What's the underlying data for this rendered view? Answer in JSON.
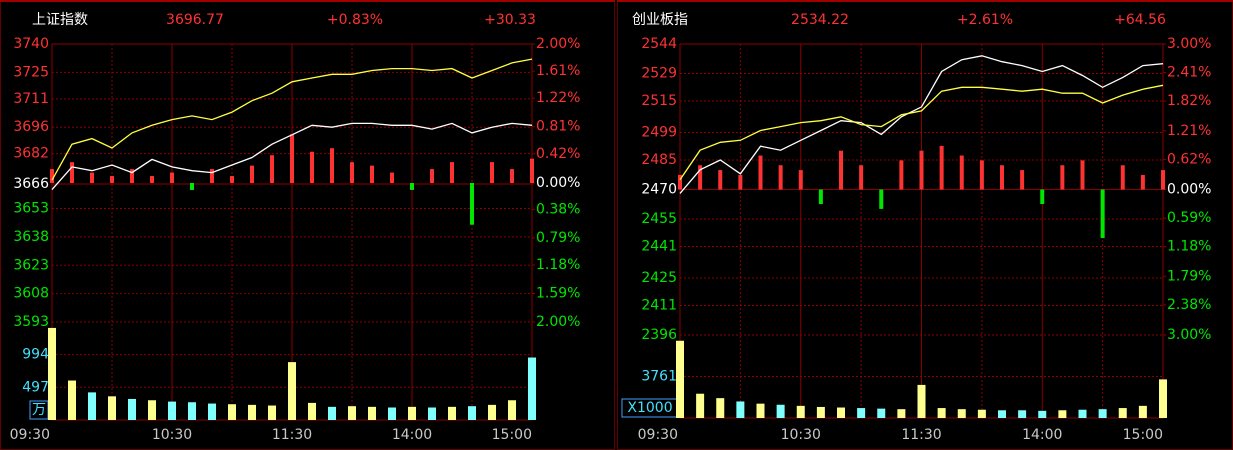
{
  "chart_data": [
    {
      "type": "intraday",
      "title": "上证指数",
      "price": "3696.77",
      "change_pct": "+0.83%",
      "change": "+30.33",
      "xlim": [
        0,
        240
      ],
      "xticks": [
        {
          "value": 0,
          "label": "09:30"
        },
        {
          "value": 60,
          "label": "10:30"
        },
        {
          "value": 120,
          "label": "11:30"
        },
        {
          "value": 180,
          "label": "14:00"
        },
        {
          "value": 240,
          "label": "15:00"
        }
      ],
      "ylim": [
        3593,
        3740
      ],
      "yticks": [
        3740,
        3725,
        3711,
        3696,
        3682,
        3666,
        3653,
        3638,
        3623,
        3608,
        3593
      ],
      "y2lim": [
        -2,
        2
      ],
      "y2ticks": [
        {
          "value": 2,
          "label": "2.00%"
        },
        {
          "value": 1.61,
          "label": "1.61%"
        },
        {
          "value": 1.22,
          "label": "1.22%"
        },
        {
          "value": 0.81,
          "label": "0.81%"
        },
        {
          "value": 0.42,
          "label": "0.42%"
        },
        {
          "value": 0,
          "label": "0.00%"
        },
        {
          "value": -0.38,
          "label": "0.38%"
        },
        {
          "value": -0.79,
          "label": "0.79%"
        },
        {
          "value": -1.18,
          "label": "1.18%"
        },
        {
          "value": -1.59,
          "label": "1.59%"
        },
        {
          "value": -2,
          "label": "2.00%"
        }
      ],
      "x": [
        0,
        10,
        20,
        30,
        40,
        50,
        60,
        70,
        80,
        90,
        100,
        110,
        120,
        130,
        140,
        150,
        160,
        170,
        180,
        190,
        200,
        210,
        220,
        230,
        240
      ],
      "lines": [
        {
          "color": "#ffffff",
          "values": [
            3663,
            3675,
            3673,
            3676,
            3672,
            3679,
            3675,
            3673,
            3672,
            3676,
            3680,
            3687,
            3692,
            3697,
            3696,
            3698,
            3698,
            3697,
            3697,
            3695,
            3698,
            3693,
            3696,
            3698,
            3697
          ]
        },
        {
          "color": "#ffff40",
          "values": [
            3668,
            3687,
            3690,
            3685,
            3693,
            3697,
            3700,
            3702,
            3700,
            3704,
            3710,
            3714,
            3720,
            3722,
            3724,
            3724,
            3726,
            3727,
            3727,
            3726,
            3727,
            3722,
            3726,
            3730,
            3732
          ]
        }
      ],
      "strength": {
        "axis": "y2",
        "color_up": "#ff3232",
        "color_down": "#00e600",
        "values": [
          0.2,
          0.3,
          0.15,
          0.1,
          0.2,
          0.1,
          0.15,
          -0.1,
          0.2,
          0.1,
          0.25,
          0.4,
          0.7,
          0.45,
          0.5,
          0.3,
          0.25,
          0.15,
          -0.1,
          0.2,
          0.3,
          -0.6,
          0.3,
          0.2,
          0.35
        ]
      },
      "volume": {
        "unit": "万",
        "ylim": [
          0,
          1490
        ],
        "yticks": [
          994,
          497
        ],
        "color_up": "#ffff90",
        "color_down": "#80ffff",
        "values": [
          1400,
          600,
          420,
          360,
          320,
          300,
          280,
          270,
          250,
          240,
          230,
          220,
          880,
          260,
          200,
          210,
          200,
          190,
          200,
          190,
          200,
          210,
          230,
          300,
          950
        ]
      }
    },
    {
      "type": "intraday",
      "title": "创业板指",
      "price": "2534.22",
      "change_pct": "+2.61%",
      "change": "+64.56",
      "xlim": [
        0,
        240
      ],
      "xticks": [
        {
          "value": 0,
          "label": "09:30"
        },
        {
          "value": 60,
          "label": "10:30"
        },
        {
          "value": 120,
          "label": "11:30"
        },
        {
          "value": 180,
          "label": "14:00"
        },
        {
          "value": 240,
          "label": "15:00"
        }
      ],
      "ylim": [
        2396,
        2544
      ],
      "yticks": [
        2544,
        2529,
        2515,
        2499,
        2485,
        2470,
        2455,
        2441,
        2425,
        2411,
        2396
      ],
      "y2lim": [
        -3,
        3
      ],
      "y2ticks": [
        {
          "value": 3,
          "label": "3.00%"
        },
        {
          "value": 2.41,
          "label": "2.41%"
        },
        {
          "value": 1.82,
          "label": "1.82%"
        },
        {
          "value": 1.21,
          "label": "1.21%"
        },
        {
          "value": 0.62,
          "label": "0.62%"
        },
        {
          "value": 0,
          "label": "0.00%"
        },
        {
          "value": -0.59,
          "label": "0.59%"
        },
        {
          "value": -1.18,
          "label": "1.18%"
        },
        {
          "value": -1.79,
          "label": "1.79%"
        },
        {
          "value": -2.38,
          "label": "2.38%"
        },
        {
          "value": -3,
          "label": "3.00%"
        }
      ],
      "x": [
        0,
        10,
        20,
        30,
        40,
        50,
        60,
        70,
        80,
        90,
        100,
        110,
        120,
        130,
        140,
        150,
        160,
        170,
        180,
        190,
        200,
        210,
        220,
        230,
        240
      ],
      "lines": [
        {
          "color": "#ffffff",
          "values": [
            2468,
            2480,
            2485,
            2478,
            2492,
            2490,
            2495,
            2500,
            2505,
            2504,
            2498,
            2507,
            2512,
            2530,
            2536,
            2538,
            2535,
            2533,
            2530,
            2533,
            2528,
            2522,
            2527,
            2533,
            2534
          ]
        },
        {
          "color": "#ffff40",
          "values": [
            2475,
            2490,
            2494,
            2495,
            2500,
            2502,
            2504,
            2505,
            2507,
            2503,
            2502,
            2508,
            2510,
            2520,
            2522,
            2522,
            2521,
            2520,
            2521,
            2519,
            2519,
            2514,
            2518,
            2521,
            2523
          ]
        }
      ],
      "strength": {
        "axis": "y2",
        "color_up": "#ff3232",
        "color_down": "#00e600",
        "values": [
          0.3,
          0.5,
          0.4,
          0.3,
          0.7,
          0.5,
          0.4,
          -0.3,
          0.8,
          0.5,
          -0.4,
          0.6,
          0.8,
          0.9,
          0.7,
          0.6,
          0.5,
          0.4,
          -0.3,
          0.5,
          0.6,
          -1.0,
          0.5,
          0.3,
          0.4
        ]
      },
      "volume": {
        "unit": "X1000",
        "ylim": [
          0,
          7522
        ],
        "yticks": [
          3761
        ],
        "color_up": "#ffff90",
        "color_down": "#80ffff",
        "values": [
          7000,
          2200,
          1800,
          1500,
          1300,
          1200,
          1100,
          1000,
          950,
          900,
          850,
          800,
          3000,
          900,
          800,
          750,
          700,
          700,
          650,
          700,
          750,
          800,
          900,
          1100,
          3500
        ]
      }
    }
  ]
}
